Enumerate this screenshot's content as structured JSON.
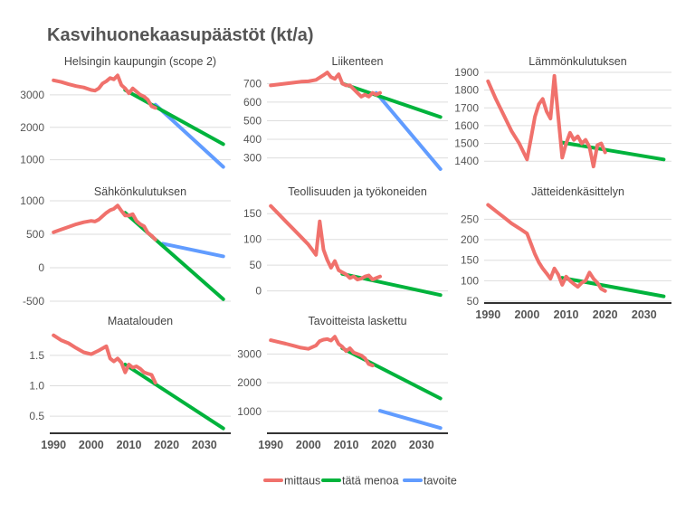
{
  "title": "Kasvihuonekaasupäästöt (kt/a)",
  "legend": [
    {
      "name": "mittaus",
      "color": "#F0716C"
    },
    {
      "name": "tätä menoa",
      "color": "#00B33C"
    },
    {
      "name": "tavoite",
      "color": "#619CFF"
    }
  ],
  "x_ticks": [
    1990,
    2000,
    2010,
    2020,
    2030
  ],
  "chart_data": [
    {
      "type": "line",
      "title": "Helsingin kaupungin  (scope 2)",
      "xlim": [
        1989,
        2037
      ],
      "ylim": [
        600,
        3750
      ],
      "yticks": [
        1000,
        2000,
        3000
      ],
      "ytick_labels": [
        "1000",
        "2000",
        "3000"
      ],
      "series": [
        {
          "name": "mittaus",
          "x": [
            1990,
            1992,
            1994,
            1996,
            1998,
            2000,
            2001,
            2002,
            2003,
            2004,
            2005,
            2006,
            2007,
            2008,
            2009,
            2010,
            2011,
            2012,
            2013,
            2014,
            2015,
            2016,
            2017
          ],
          "y": [
            3450,
            3400,
            3330,
            3270,
            3230,
            3150,
            3130,
            3200,
            3350,
            3420,
            3520,
            3480,
            3600,
            3300,
            3200,
            3050,
            3200,
            3100,
            3000,
            2950,
            2850,
            2650,
            2600
          ]
        },
        {
          "name": "tätä menoa",
          "x": [
            2009,
            2035
          ],
          "y": [
            3150,
            1480
          ]
        },
        {
          "name": "tavoite",
          "x": [
            2017,
            2035
          ],
          "y": [
            2700,
            780
          ]
        }
      ]
    },
    {
      "type": "line",
      "title": "Liikenteen",
      "xlim": [
        1989,
        2037
      ],
      "ylim": [
        220,
        770
      ],
      "yticks": [
        300,
        400,
        500,
        600,
        700
      ],
      "ytick_labels": [
        "300",
        "400",
        "500",
        "600",
        "700"
      ],
      "series": [
        {
          "name": "mittaus",
          "x": [
            1990,
            1992,
            1994,
            1996,
            1998,
            2000,
            2002,
            2004,
            2005,
            2006,
            2007,
            2008,
            2009,
            2010,
            2011,
            2012,
            2013,
            2014,
            2015,
            2016,
            2017,
            2018,
            2019
          ],
          "y": [
            690,
            695,
            700,
            705,
            710,
            712,
            720,
            745,
            760,
            735,
            725,
            750,
            700,
            690,
            690,
            670,
            650,
            630,
            640,
            630,
            650,
            640,
            650
          ]
        },
        {
          "name": "tätä menoa",
          "x": [
            2009,
            2035
          ],
          "y": [
            700,
            520
          ]
        },
        {
          "name": "tavoite",
          "x": [
            2018,
            2035
          ],
          "y": [
            650,
            240
          ]
        }
      ]
    },
    {
      "type": "line",
      "title": "Lämmönkulutuksen",
      "xlim": [
        1989,
        2037
      ],
      "ylim": [
        1335,
        1910
      ],
      "yticks": [
        1400,
        1500,
        1600,
        1700,
        1800,
        1900
      ],
      "ytick_labels": [
        "1400",
        "1500",
        "1600",
        "1700",
        "1800",
        "1900"
      ],
      "series": [
        {
          "name": "mittaus",
          "x": [
            1990,
            1992,
            1994,
            1996,
            1998,
            2000,
            2001,
            2002,
            2003,
            2004,
            2005,
            2006,
            2007,
            2008,
            2009,
            2010,
            2011,
            2012,
            2013,
            2014,
            2015,
            2016,
            2017,
            2018,
            2019,
            2020
          ],
          "y": [
            1850,
            1750,
            1660,
            1570,
            1500,
            1410,
            1530,
            1650,
            1720,
            1750,
            1680,
            1640,
            1880,
            1650,
            1420,
            1500,
            1560,
            1520,
            1540,
            1500,
            1520,
            1480,
            1370,
            1490,
            1500,
            1450
          ]
        },
        {
          "name": "tätä menoa",
          "x": [
            2009,
            2035
          ],
          "y": [
            1505,
            1410
          ]
        }
      ]
    },
    {
      "type": "line",
      "title": "Sähkönkulutuksen",
      "xlim": [
        1989,
        2037
      ],
      "ylim": [
        -500,
        1000
      ],
      "yticks": [
        -500,
        0,
        500,
        1000
      ],
      "ytick_labels": [
        "-500",
        "0",
        "500",
        "1000"
      ],
      "series": [
        {
          "name": "mittaus",
          "x": [
            1990,
            1992,
            1994,
            1996,
            1998,
            2000,
            2001,
            2002,
            2003,
            2004,
            2005,
            2006,
            2007,
            2008,
            2009,
            2010,
            2011,
            2012,
            2013,
            2014,
            2015,
            2016,
            2017
          ],
          "y": [
            530,
            570,
            610,
            650,
            680,
            700,
            690,
            720,
            770,
            820,
            860,
            880,
            930,
            850,
            780,
            780,
            800,
            700,
            650,
            620,
            520,
            480,
            420
          ]
        },
        {
          "name": "tätä menoa",
          "x": [
            2009,
            2035
          ],
          "y": [
            820,
            -470
          ]
        },
        {
          "name": "tavoite",
          "x": [
            2019,
            2035
          ],
          "y": [
            360,
            170
          ]
        }
      ]
    },
    {
      "type": "line",
      "title": "Teollisuuden ja työkoneiden",
      "xlim": [
        1989,
        2037
      ],
      "ylim": [
        -20,
        175
      ],
      "yticks": [
        0,
        50,
        100,
        150
      ],
      "ytick_labels": [
        "0",
        "50",
        "100",
        "150"
      ],
      "series": [
        {
          "name": "mittaus",
          "x": [
            1990,
            1992,
            1994,
            1996,
            1998,
            2000,
            2001,
            2002,
            2003,
            2004,
            2005,
            2006,
            2007,
            2008,
            2009,
            2010,
            2011,
            2012,
            2013,
            2014,
            2015,
            2016,
            2017,
            2018,
            2019
          ],
          "y": [
            165,
            150,
            135,
            120,
            105,
            90,
            80,
            70,
            135,
            80,
            60,
            45,
            58,
            40,
            36,
            32,
            25,
            28,
            22,
            24,
            28,
            30,
            22,
            25,
            28
          ]
        },
        {
          "name": "tätä menoa",
          "x": [
            2009,
            2035
          ],
          "y": [
            33,
            -8
          ]
        }
      ]
    },
    {
      "type": "line",
      "title": "Jätteidenkäsittelyn",
      "xlim": [
        1989,
        2037
      ],
      "ylim": [
        50,
        295
      ],
      "yticks": [
        50,
        100,
        150,
        200,
        250
      ],
      "ytick_labels": [
        "50",
        "100",
        "150",
        "200",
        "250"
      ],
      "series": [
        {
          "name": "mittaus",
          "x": [
            1990,
            1992,
            1994,
            1996,
            1998,
            2000,
            2001,
            2002,
            2003,
            2004,
            2005,
            2006,
            2007,
            2008,
            2009,
            2010,
            2011,
            2012,
            2013,
            2014,
            2015,
            2016,
            2017,
            2018,
            2019,
            2020
          ],
          "y": [
            285,
            270,
            255,
            240,
            228,
            215,
            190,
            165,
            145,
            130,
            118,
            105,
            130,
            115,
            90,
            110,
            100,
            92,
            85,
            95,
            100,
            120,
            105,
            95,
            80,
            75
          ]
        },
        {
          "name": "tätä menoa",
          "x": [
            2009,
            2035
          ],
          "y": [
            107,
            62
          ]
        }
      ]
    },
    {
      "type": "line",
      "title": "Maatalouden",
      "xlim": [
        1989,
        2037
      ],
      "ylim": [
        0.25,
        1.9
      ],
      "yticks": [
        0.5,
        1.0,
        1.5
      ],
      "ytick_labels": [
        "0.5",
        "1.0",
        "1.5"
      ],
      "series": [
        {
          "name": "mittaus",
          "x": [
            1990,
            1992,
            1994,
            1996,
            1998,
            2000,
            2002,
            2004,
            2005,
            2006,
            2007,
            2008,
            2009,
            2010,
            2011,
            2012,
            2013,
            2014,
            2015,
            2016,
            2017
          ],
          "y": [
            1.83,
            1.75,
            1.7,
            1.62,
            1.55,
            1.52,
            1.58,
            1.65,
            1.45,
            1.4,
            1.45,
            1.38,
            1.22,
            1.35,
            1.3,
            1.32,
            1.28,
            1.22,
            1.2,
            1.18,
            1.05
          ]
        },
        {
          "name": "tätä menoa",
          "x": [
            2009,
            2035
          ],
          "y": [
            1.35,
            0.3
          ]
        }
      ]
    },
    {
      "type": "line",
      "title": "Tavoitteista laskettu",
      "xlim": [
        1989,
        2037
      ],
      "ylim": [
        300,
        3800
      ],
      "yticks": [
        1000,
        2000,
        3000
      ],
      "ytick_labels": [
        "1000",
        "2000",
        "3000"
      ],
      "series": [
        {
          "name": "mittaus",
          "x": [
            1990,
            1992,
            1994,
            1996,
            1998,
            2000,
            2002,
            2003,
            2004,
            2005,
            2006,
            2007,
            2008,
            2009,
            2010,
            2011,
            2012,
            2013,
            2014,
            2015,
            2016,
            2017
          ],
          "y": [
            3480,
            3420,
            3360,
            3290,
            3220,
            3180,
            3300,
            3450,
            3500,
            3520,
            3470,
            3600,
            3350,
            3250,
            3100,
            3200,
            3050,
            3000,
            2950,
            2850,
            2650,
            2600
          ]
        },
        {
          "name": "tätä menoa",
          "x": [
            2009,
            2035
          ],
          "y": [
            3200,
            1450
          ]
        },
        {
          "name": "tavoite",
          "x": [
            2019,
            2035
          ],
          "y": [
            1020,
            420
          ]
        }
      ]
    }
  ]
}
